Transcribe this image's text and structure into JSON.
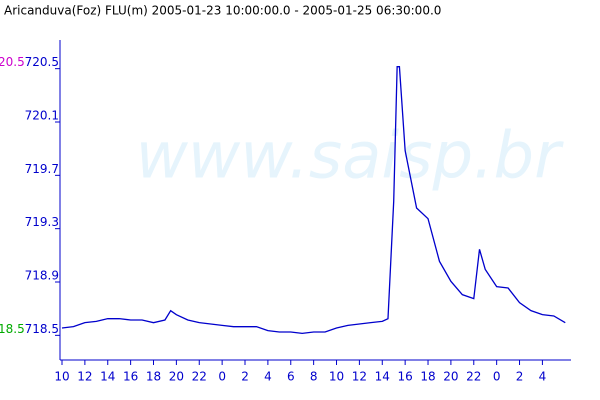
{
  "chart_data": {
    "type": "line",
    "title": "Aricanduva(Foz) FLU(m) 2005-01-23 10:00:00.0 - 2005-01-25 06:30:00.0",
    "watermark": "www.saisp.br",
    "x": [
      0,
      1,
      2,
      3,
      4,
      5,
      6,
      7,
      8,
      9,
      9.5,
      10,
      11,
      12,
      13,
      14,
      15,
      16,
      17,
      18,
      19,
      20,
      21,
      22,
      23,
      24,
      25,
      26,
      27,
      28,
      28.5,
      29,
      29.3,
      29.5,
      30,
      31,
      32,
      33,
      34,
      35,
      36,
      36.5,
      37,
      38,
      39,
      40,
      41,
      42,
      43,
      44
    ],
    "series": [
      {
        "name": "FLU",
        "color": "#0000cc",
        "values": [
          718.51,
          718.52,
          718.55,
          718.56,
          718.58,
          718.58,
          718.57,
          718.57,
          718.55,
          718.57,
          718.64,
          718.61,
          718.57,
          718.55,
          718.54,
          718.53,
          718.52,
          718.52,
          718.52,
          718.49,
          718.48,
          718.48,
          718.47,
          718.48,
          718.48,
          718.51,
          718.53,
          718.54,
          718.55,
          718.56,
          718.58,
          719.46,
          720.47,
          720.47,
          719.84,
          719.41,
          719.33,
          719.01,
          718.86,
          718.76,
          718.73,
          719.1,
          718.95,
          718.82,
          718.81,
          718.7,
          718.64,
          718.61,
          718.6,
          718.55
        ]
      }
    ],
    "xlim": [
      0,
      44.5
    ],
    "xticks": [
      {
        "value": 0,
        "label": "10"
      },
      {
        "value": 2,
        "label": "12"
      },
      {
        "value": 4,
        "label": "14"
      },
      {
        "value": 6,
        "label": "16"
      },
      {
        "value": 8,
        "label": "18"
      },
      {
        "value": 10,
        "label": "20"
      },
      {
        "value": 12,
        "label": "22"
      },
      {
        "value": 14,
        "label": "0"
      },
      {
        "value": 16,
        "label": "2"
      },
      {
        "value": 18,
        "label": "4"
      },
      {
        "value": 20,
        "label": "6"
      },
      {
        "value": 22,
        "label": "8"
      },
      {
        "value": 24,
        "label": "10"
      },
      {
        "value": 26,
        "label": "12"
      },
      {
        "value": 28,
        "label": "14"
      },
      {
        "value": 30,
        "label": "16"
      },
      {
        "value": 32,
        "label": "18"
      },
      {
        "value": 34,
        "label": "20"
      },
      {
        "value": 36,
        "label": "22"
      },
      {
        "value": 38,
        "label": "0"
      },
      {
        "value": 40,
        "label": "2"
      },
      {
        "value": 42,
        "label": "4"
      }
    ],
    "ylim": [
      718.27,
      720.67
    ],
    "yticks": [
      718.5,
      718.9,
      719.3,
      719.7,
      720.1,
      720.5
    ],
    "y2lim": [
      18.27,
      20.67
    ],
    "y2ticks": [
      18.5,
      20.5
    ],
    "y2tick_colors": [
      "#00aa00",
      "#cc00cc"
    ],
    "axis_color": "#0000cc"
  }
}
